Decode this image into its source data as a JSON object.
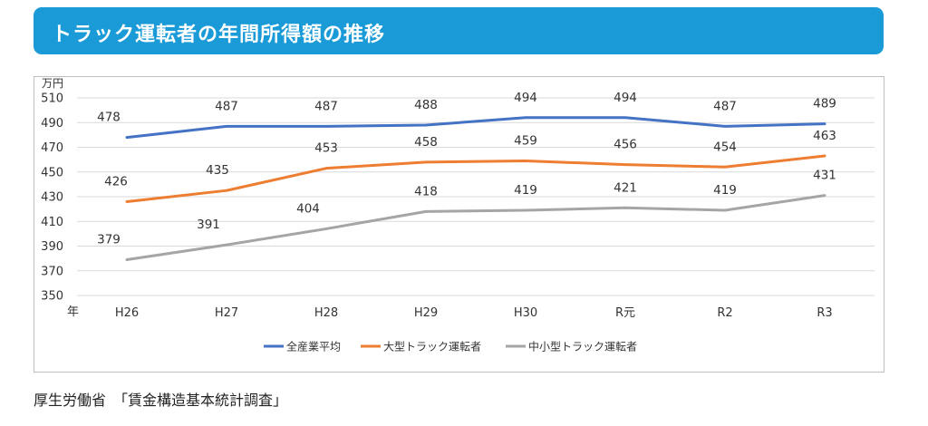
{
  "title": "トラック運転者の年間所得額の推移",
  "source": "厚生労働省　「賃金構造基本統計調査」",
  "chart_data": {
    "type": "line",
    "y_unit": "万円",
    "x_unit": "年",
    "categories": [
      "H26",
      "H27",
      "H28",
      "H29",
      "H30",
      "R元",
      "R2",
      "R3"
    ],
    "ylim": [
      350,
      510
    ],
    "yticks": [
      350,
      370,
      390,
      410,
      430,
      450,
      470,
      490,
      510
    ],
    "grid": true,
    "legend_position": "bottom",
    "series": [
      {
        "name": "全産業平均",
        "color": "#4472c4",
        "values": [
          478,
          487,
          487,
          488,
          494,
          494,
          487,
          489
        ]
      },
      {
        "name": "大型トラック運転者",
        "color": "#ed7d31",
        "values": [
          426,
          435,
          453,
          458,
          459,
          456,
          454,
          463
        ]
      },
      {
        "name": "中小型トラック運転者",
        "color": "#a5a5a5",
        "values": [
          379,
          391,
          404,
          418,
          419,
          421,
          419,
          431
        ]
      }
    ]
  }
}
